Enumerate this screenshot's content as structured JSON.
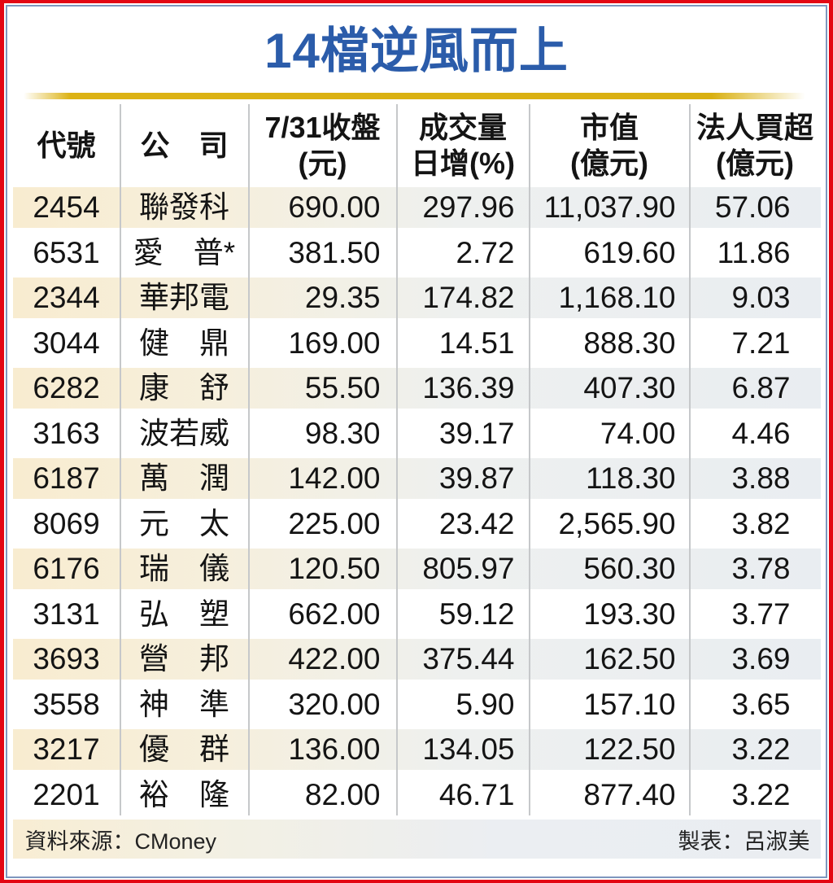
{
  "title": "14檔逆風而上",
  "table": {
    "columns": {
      "code": {
        "l1": "代號"
      },
      "company": {
        "l1": "公　司"
      },
      "close": {
        "l1": "7/31收盤",
        "l2": "(元)"
      },
      "volume": {
        "l1": "成交量",
        "l2": "日增(%)"
      },
      "mcap": {
        "l1": "市值",
        "l2": "(億元)"
      },
      "net": {
        "l1": "法人買超",
        "l2": "(億元)"
      }
    },
    "rows": [
      {
        "code": "2454",
        "name": "聯發科",
        "close": "690.00",
        "vol": "297.96",
        "mcap": "11,037.90",
        "net": "57.06"
      },
      {
        "code": "6531",
        "name": "愛　普*",
        "close": "381.50",
        "vol": "2.72",
        "mcap": "619.60",
        "net": "11.86"
      },
      {
        "code": "2344",
        "name": "華邦電",
        "close": "29.35",
        "vol": "174.82",
        "mcap": "1,168.10",
        "net": "9.03"
      },
      {
        "code": "3044",
        "name": "健　鼎",
        "close": "169.00",
        "vol": "14.51",
        "mcap": "888.30",
        "net": "7.21"
      },
      {
        "code": "6282",
        "name": "康　舒",
        "close": "55.50",
        "vol": "136.39",
        "mcap": "407.30",
        "net": "6.87"
      },
      {
        "code": "3163",
        "name": "波若威",
        "close": "98.30",
        "vol": "39.17",
        "mcap": "74.00",
        "net": "4.46"
      },
      {
        "code": "6187",
        "name": "萬　潤",
        "close": "142.00",
        "vol": "39.87",
        "mcap": "118.30",
        "net": "3.88"
      },
      {
        "code": "8069",
        "name": "元　太",
        "close": "225.00",
        "vol": "23.42",
        "mcap": "2,565.90",
        "net": "3.82"
      },
      {
        "code": "6176",
        "name": "瑞　儀",
        "close": "120.50",
        "vol": "805.97",
        "mcap": "560.30",
        "net": "3.78"
      },
      {
        "code": "3131",
        "name": "弘　塑",
        "close": "662.00",
        "vol": "59.12",
        "mcap": "193.30",
        "net": "3.77"
      },
      {
        "code": "3693",
        "name": "營　邦",
        "close": "422.00",
        "vol": "375.44",
        "mcap": "162.50",
        "net": "3.69"
      },
      {
        "code": "3558",
        "name": "神　準",
        "close": "320.00",
        "vol": "5.90",
        "mcap": "157.10",
        "net": "3.65"
      },
      {
        "code": "3217",
        "name": "優　群",
        "close": "136.00",
        "vol": "134.05",
        "mcap": "122.50",
        "net": "3.22"
      },
      {
        "code": "2201",
        "name": "裕　隆",
        "close": "82.00",
        "vol": "46.71",
        "mcap": "877.40",
        "net": "3.22"
      }
    ]
  },
  "footer": {
    "source": "資料來源：CMoney",
    "credit": "製表：呂淑美"
  },
  "colors": {
    "title_blue": "#2b5caa",
    "frame_red": "#e30613",
    "frame_blue": "#7e96be",
    "gold_band": "#dcb214",
    "row_cream": "#f8ecd0",
    "row_bluegray": "#e9edf1",
    "separator_gray": "#c6c8ca"
  },
  "chart_data": {
    "type": "table",
    "title": "14檔逆風而上",
    "columns": [
      "代號",
      "公司",
      "7/31收盤(元)",
      "成交量日增(%)",
      "市值(億元)",
      "法人買超(億元)"
    ],
    "rows": [
      [
        2454,
        "聯發科",
        690.0,
        297.96,
        11037.9,
        57.06
      ],
      [
        6531,
        "愛普*",
        381.5,
        2.72,
        619.6,
        11.86
      ],
      [
        2344,
        "華邦電",
        29.35,
        174.82,
        1168.1,
        9.03
      ],
      [
        3044,
        "健鼎",
        169.0,
        14.51,
        888.3,
        7.21
      ],
      [
        6282,
        "康舒",
        55.5,
        136.39,
        407.3,
        6.87
      ],
      [
        3163,
        "波若威",
        98.3,
        39.17,
        74.0,
        4.46
      ],
      [
        6187,
        "萬潤",
        142.0,
        39.87,
        118.3,
        3.88
      ],
      [
        8069,
        "元太",
        225.0,
        23.42,
        2565.9,
        3.82
      ],
      [
        6176,
        "瑞儀",
        120.5,
        805.97,
        560.3,
        3.78
      ],
      [
        3131,
        "弘塑",
        662.0,
        59.12,
        193.3,
        3.77
      ],
      [
        3693,
        "營邦",
        422.0,
        375.44,
        162.5,
        3.69
      ],
      [
        3558,
        "神準",
        320.0,
        5.9,
        157.1,
        3.65
      ],
      [
        3217,
        "優群",
        136.0,
        134.05,
        122.5,
        3.22
      ],
      [
        2201,
        "裕隆",
        82.0,
        46.71,
        877.4,
        3.22
      ]
    ],
    "source": "CMoney",
    "credited_to": "呂淑美"
  }
}
